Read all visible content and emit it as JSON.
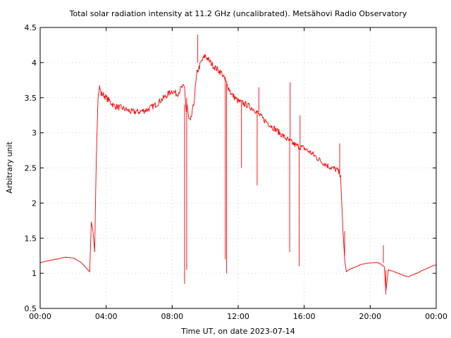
{
  "chart_data": {
    "type": "line",
    "title": "Total solar radiation intensity at 11.2 GHz (uncalibrated). Metsähovi Radio Observatory",
    "xlabel": "Time UT, on date 2023-07-14",
    "ylabel": "Arbitrary unit",
    "xlim": [
      0,
      24
    ],
    "ylim": [
      0.5,
      4.5
    ],
    "x_ticks": [
      0,
      4,
      8,
      12,
      16,
      20,
      24
    ],
    "x_tick_labels": [
      "00:00",
      "04:00",
      "08:00",
      "12:00",
      "16:00",
      "20:00",
      "00:00"
    ],
    "y_ticks": [
      0.5,
      1,
      1.5,
      2,
      2.5,
      3,
      3.5,
      4,
      4.5
    ],
    "y_tick_labels": [
      "0.5",
      "1",
      "1.5",
      "2",
      "2.5",
      "3",
      "3.5",
      "4",
      "4.5"
    ],
    "grid": true,
    "line_color": "#ff0000",
    "series": [
      {
        "x": [
          0,
          0.5,
          1,
          1.5,
          2,
          2.5,
          2.9,
          3.0,
          3.1,
          3.2,
          3.3,
          3.4,
          3.5,
          3.6,
          3.7,
          3.8,
          4.0,
          4.5,
          5.0,
          5.5,
          6.0,
          6.5,
          7.0,
          7.5,
          8.0,
          8.3,
          8.6,
          8.75,
          8.85,
          8.9,
          9.0,
          9.1,
          9.3,
          9.5,
          9.75,
          10.0,
          10.5,
          11.0,
          11.3,
          11.6,
          12.0,
          12.5,
          13.0,
          13.5,
          14.0,
          14.5,
          15.0,
          15.5,
          16.0,
          16.5,
          17.0,
          17.5,
          18.0,
          18.2,
          18.35,
          18.45,
          18.55,
          18.7,
          19.0,
          19.5,
          20.0,
          20.5,
          20.85,
          20.95,
          21.1,
          21.5,
          22.0,
          22.3,
          22.6,
          23.0,
          23.5,
          24.0
        ],
        "y": [
          1.15,
          1.18,
          1.2,
          1.23,
          1.22,
          1.15,
          1.05,
          1.02,
          1.73,
          1.6,
          1.3,
          2.6,
          3.5,
          3.65,
          3.55,
          3.55,
          3.5,
          3.38,
          3.35,
          3.3,
          3.3,
          3.33,
          3.4,
          3.5,
          3.6,
          3.55,
          3.65,
          3.65,
          3.3,
          3.4,
          3.2,
          3.15,
          3.4,
          3.85,
          4.0,
          4.1,
          3.95,
          3.85,
          3.7,
          3.55,
          3.45,
          3.4,
          3.33,
          3.2,
          3.1,
          3.0,
          2.9,
          2.82,
          2.78,
          2.7,
          2.6,
          2.52,
          2.47,
          2.4,
          1.6,
          1.2,
          1.02,
          1.05,
          1.08,
          1.13,
          1.15,
          1.15,
          1.1,
          0.75,
          1.05,
          1.02,
          0.97,
          0.95,
          0.98,
          1.02,
          1.08,
          1.12
        ]
      }
    ],
    "spikes": [
      {
        "x": 8.75,
        "y0": 3.4,
        "y1": 0.85
      },
      {
        "x": 8.88,
        "y0": 3.5,
        "y1": 1.05
      },
      {
        "x": 9.55,
        "y0": 4.0,
        "y1": 4.4
      },
      {
        "x": 11.22,
        "y0": 3.8,
        "y1": 1.2
      },
      {
        "x": 11.3,
        "y0": 3.7,
        "y1": 1.0
      },
      {
        "x": 12.2,
        "y0": 3.45,
        "y1": 2.5
      },
      {
        "x": 13.15,
        "y0": 3.3,
        "y1": 2.25
      },
      {
        "x": 13.25,
        "y0": 3.3,
        "y1": 3.65
      },
      {
        "x": 15.12,
        "y0": 2.9,
        "y1": 1.3
      },
      {
        "x": 15.15,
        "y0": 2.9,
        "y1": 3.72
      },
      {
        "x": 15.7,
        "y0": 2.8,
        "y1": 1.1
      },
      {
        "x": 15.75,
        "y0": 2.8,
        "y1": 3.25
      },
      {
        "x": 18.15,
        "y0": 2.45,
        "y1": 2.85
      },
      {
        "x": 18.45,
        "y0": 1.6,
        "y1": 1.25
      },
      {
        "x": 20.8,
        "y0": 1.15,
        "y1": 1.4
      },
      {
        "x": 20.95,
        "y0": 1.05,
        "y1": 0.7
      }
    ]
  }
}
